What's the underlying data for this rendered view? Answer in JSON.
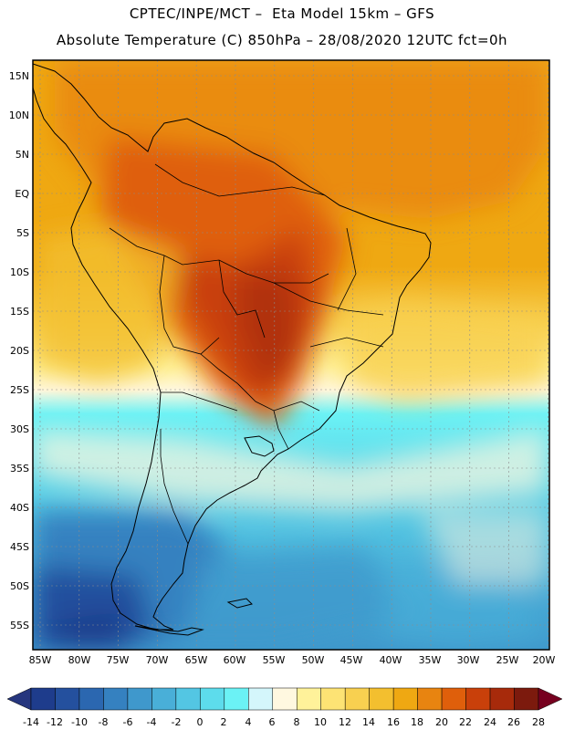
{
  "header": {
    "title_line1": "CPTEC/INPE/MCT –  Eta Model 15km – GFS",
    "title_line2": "Absolute Temperature (C) 850hPa – 28/08/2020 12UTC fct=0h"
  },
  "map": {
    "lat_labels": [
      "15N",
      "10N",
      "5N",
      "EQ",
      "5S",
      "10S",
      "15S",
      "20S",
      "25S",
      "30S",
      "35S",
      "40S",
      "45S",
      "50S",
      "55S"
    ],
    "lon_labels": [
      "85W",
      "80W",
      "75W",
      "70W",
      "65W",
      "60W",
      "55W",
      "50W",
      "45W",
      "40W",
      "35W",
      "30W",
      "25W",
      "20W"
    ]
  },
  "colorbar": {
    "labels": [
      "-14",
      "-12",
      "-10",
      "-8",
      "-6",
      "-4",
      "-2",
      "0",
      "2",
      "4",
      "6",
      "8",
      "10",
      "12",
      "14",
      "16",
      "18",
      "20",
      "22",
      "24",
      "26",
      "28"
    ],
    "colors": [
      "#1e3c8c",
      "#24509e",
      "#2b67b0",
      "#3581c0",
      "#3f98cc",
      "#49afd8",
      "#53c6e3",
      "#5ddcec",
      "#6bf2f5",
      "#d4f6fb",
      "#fff8e0",
      "#fff29a",
      "#fde374",
      "#f8d050",
      "#f3bf2f",
      "#efa812",
      "#e88410",
      "#df5f0b",
      "#c9400a",
      "#a72a0b",
      "#7c1a0d"
    ],
    "under_color": "#26367e",
    "over_color": "#76001f"
  }
}
